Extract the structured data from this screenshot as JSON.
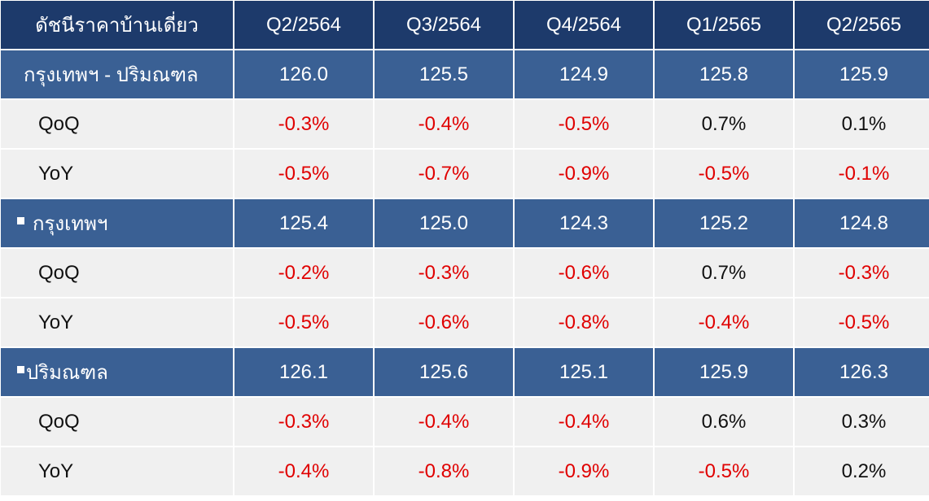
{
  "header": {
    "title": "ดัชนีราคาบ้านเดี่ยว",
    "columns": [
      "Q2/2564",
      "Q3/2564",
      "Q4/2564",
      "Q1/2565",
      "Q2/2565"
    ]
  },
  "sections": [
    {
      "label": "กรุงเทพฯ - ปริมณฑล",
      "values": [
        "126.0",
        "125.5",
        "124.9",
        "125.8",
        "125.9"
      ],
      "qoq_label": "QoQ",
      "qoq": [
        "-0.3%",
        "-0.4%",
        "-0.5%",
        "0.7%",
        "0.1%"
      ],
      "yoy_label": "YoY",
      "yoy": [
        "-0.5%",
        "-0.7%",
        "-0.9%",
        "-0.5%",
        "-0.1%"
      ]
    },
    {
      "label": "กรุงเทพฯ",
      "values": [
        "125.4",
        "125.0",
        "124.3",
        "125.2",
        "124.8"
      ],
      "qoq_label": "QoQ",
      "qoq": [
        "-0.2%",
        "-0.3%",
        "-0.6%",
        "0.7%",
        "-0.3%"
      ],
      "yoy_label": "YoY",
      "yoy": [
        "-0.5%",
        "-0.6%",
        "-0.8%",
        "-0.4%",
        "-0.5%"
      ]
    },
    {
      "label": "ปริมณฑล",
      "values": [
        "126.1",
        "125.6",
        "125.1",
        "125.9",
        "126.3"
      ],
      "qoq_label": "QoQ",
      "qoq": [
        "-0.3%",
        "-0.4%",
        "-0.4%",
        "0.6%",
        "0.3%"
      ],
      "yoy_label": "YoY",
      "yoy": [
        "-0.4%",
        "-0.8%",
        "-0.9%",
        "-0.5%",
        "0.2%"
      ]
    }
  ],
  "colors": {
    "header_bg": "#1d3a6b",
    "section_bg": "#3a6094",
    "subrow_bg": "#f0f0f0",
    "negative": "#e00000",
    "positive": "#111111"
  }
}
